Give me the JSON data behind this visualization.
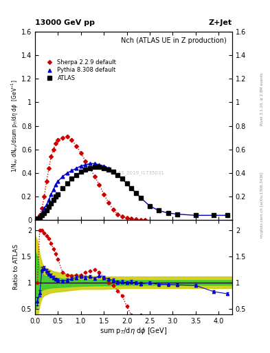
{
  "title": "Nch (ATLAS UE in Z production)",
  "top_left_label": "13000 GeV pp",
  "top_right_label": "Z+Jet",
  "right_label_rivet": "Rivet 3.1.10, ≥ 2.8M events",
  "right_label_mcplots": "mcplots.cern.ch [arXiv:1306.3436]",
  "watermark": "ATLAS_2019_I1735031",
  "xlabel": "sum p$_T$/dη dϕ [GeV]",
  "ylabel_ratio": "Ratio to ATLAS",
  "xlim": [
    0,
    4.3
  ],
  "ylim_main": [
    0,
    1.6
  ],
  "ylim_ratio": [
    0.4,
    2.2
  ],
  "atlas_x": [
    0.05,
    0.1,
    0.15,
    0.2,
    0.25,
    0.3,
    0.35,
    0.4,
    0.45,
    0.5,
    0.6,
    0.7,
    0.8,
    0.9,
    1.0,
    1.1,
    1.2,
    1.3,
    1.4,
    1.5,
    1.6,
    1.7,
    1.8,
    1.9,
    2.0,
    2.1,
    2.2,
    2.3,
    2.5,
    2.7,
    2.9,
    3.1,
    3.5,
    3.9,
    4.2
  ],
  "atlas_y": [
    0.01,
    0.02,
    0.04,
    0.06,
    0.08,
    0.11,
    0.14,
    0.17,
    0.2,
    0.22,
    0.27,
    0.31,
    0.35,
    0.38,
    0.41,
    0.43,
    0.44,
    0.45,
    0.45,
    0.44,
    0.43,
    0.41,
    0.38,
    0.35,
    0.31,
    0.27,
    0.23,
    0.19,
    0.12,
    0.08,
    0.06,
    0.05,
    0.04,
    0.04,
    0.04
  ],
  "pythia_x": [
    0.05,
    0.1,
    0.15,
    0.2,
    0.25,
    0.3,
    0.35,
    0.4,
    0.45,
    0.5,
    0.6,
    0.7,
    0.8,
    0.9,
    1.0,
    1.1,
    1.2,
    1.3,
    1.4,
    1.5,
    1.6,
    1.7,
    1.8,
    1.9,
    2.0,
    2.1,
    2.2,
    2.3,
    2.5,
    2.7,
    2.9,
    3.1,
    3.5,
    3.9,
    4.2
  ],
  "pythia_y": [
    0.01,
    0.03,
    0.06,
    0.1,
    0.13,
    0.17,
    0.22,
    0.26,
    0.3,
    0.33,
    0.37,
    0.4,
    0.42,
    0.44,
    0.46,
    0.47,
    0.48,
    0.48,
    0.47,
    0.46,
    0.44,
    0.41,
    0.38,
    0.35,
    0.31,
    0.27,
    0.23,
    0.19,
    0.12,
    0.08,
    0.06,
    0.05,
    0.04,
    0.04,
    0.04
  ],
  "sherpa_x": [
    0.05,
    0.1,
    0.15,
    0.2,
    0.25,
    0.3,
    0.35,
    0.4,
    0.45,
    0.5,
    0.6,
    0.7,
    0.8,
    0.9,
    1.0,
    1.1,
    1.2,
    1.3,
    1.4,
    1.5,
    1.6,
    1.7,
    1.8,
    1.9,
    2.0,
    2.1,
    2.2,
    2.3,
    2.4
  ],
  "sherpa_y": [
    0.01,
    0.04,
    0.1,
    0.2,
    0.33,
    0.44,
    0.54,
    0.6,
    0.65,
    0.68,
    0.7,
    0.71,
    0.68,
    0.63,
    0.57,
    0.5,
    0.44,
    0.37,
    0.3,
    0.22,
    0.15,
    0.09,
    0.05,
    0.03,
    0.02,
    0.01,
    0.005,
    0.003,
    0.001
  ],
  "ratio_pythia_x": [
    0.05,
    0.1,
    0.15,
    0.2,
    0.25,
    0.3,
    0.35,
    0.4,
    0.45,
    0.5,
    0.6,
    0.7,
    0.8,
    0.9,
    1.0,
    1.1,
    1.2,
    1.3,
    1.4,
    1.5,
    1.6,
    1.7,
    1.8,
    1.9,
    2.0,
    2.1,
    2.2,
    2.3,
    2.5,
    2.7,
    2.9,
    3.1,
    3.5,
    3.9,
    4.2
  ],
  "ratio_pythia_y": [
    0.65,
    0.8,
    1.25,
    1.28,
    1.22,
    1.18,
    1.14,
    1.1,
    1.07,
    1.05,
    1.03,
    1.05,
    1.08,
    1.1,
    1.12,
    1.1,
    1.12,
    1.08,
    1.14,
    1.1,
    1.07,
    1.05,
    1.01,
    1.02,
    1.0,
    1.02,
    1.0,
    0.98,
    1.0,
    0.97,
    0.97,
    0.96,
    0.95,
    0.83,
    0.79
  ],
  "ratio_pythia_err": [
    0.08,
    0.06,
    0.05,
    0.04,
    0.04,
    0.04,
    0.03,
    0.03,
    0.03,
    0.03,
    0.03,
    0.03,
    0.03,
    0.03,
    0.03,
    0.03,
    0.03,
    0.03,
    0.03,
    0.03,
    0.03,
    0.03,
    0.03,
    0.03,
    0.03,
    0.03,
    0.03,
    0.03,
    0.03,
    0.03,
    0.03,
    0.03,
    0.03,
    0.03,
    0.03
  ],
  "ratio_sherpa_x": [
    0.05,
    0.1,
    0.15,
    0.2,
    0.25,
    0.3,
    0.35,
    0.4,
    0.45,
    0.5,
    0.6,
    0.7,
    0.8,
    0.9,
    1.0,
    1.1,
    1.2,
    1.3,
    1.4,
    1.5,
    1.6,
    1.7,
    1.8,
    1.9,
    2.0,
    2.1,
    2.2,
    2.3,
    2.4
  ],
  "ratio_sherpa_y": [
    1.0,
    2.0,
    2.0,
    1.95,
    1.9,
    1.85,
    1.75,
    1.65,
    1.55,
    1.45,
    1.2,
    1.15,
    1.13,
    1.15,
    1.15,
    1.2,
    1.22,
    1.25,
    1.2,
    1.1,
    1.0,
    0.95,
    0.85,
    0.75,
    0.55,
    0.38,
    0.24,
    0.38,
    0.0
  ],
  "band_x": [
    0.0,
    0.05,
    0.1,
    0.15,
    0.2,
    0.3,
    0.4,
    0.6,
    0.8,
    1.0,
    1.5,
    2.0,
    2.5,
    3.0,
    3.5,
    4.0,
    4.3
  ],
  "band_inner_low": [
    0.5,
    0.55,
    0.78,
    0.86,
    0.88,
    0.9,
    0.91,
    0.92,
    0.93,
    0.94,
    0.95,
    0.96,
    0.96,
    0.96,
    0.96,
    0.96,
    0.96
  ],
  "band_inner_high": [
    1.6,
    1.5,
    1.28,
    1.18,
    1.14,
    1.12,
    1.1,
    1.08,
    1.07,
    1.06,
    1.06,
    1.05,
    1.05,
    1.05,
    1.05,
    1.05,
    1.05
  ],
  "band_outer_low": [
    0.3,
    0.35,
    0.58,
    0.72,
    0.76,
    0.8,
    0.82,
    0.84,
    0.86,
    0.88,
    0.88,
    0.9,
    0.9,
    0.9,
    0.9,
    0.9,
    0.9
  ],
  "band_outer_high": [
    1.9,
    1.8,
    1.55,
    1.38,
    1.3,
    1.26,
    1.22,
    1.18,
    1.16,
    1.14,
    1.12,
    1.12,
    1.12,
    1.12,
    1.12,
    1.12,
    1.12
  ],
  "atlas_color": "#000000",
  "pythia_color": "#0000cc",
  "sherpa_color": "#cc0000",
  "band_inner_color": "#33cc33",
  "band_outer_color": "#cccc00"
}
